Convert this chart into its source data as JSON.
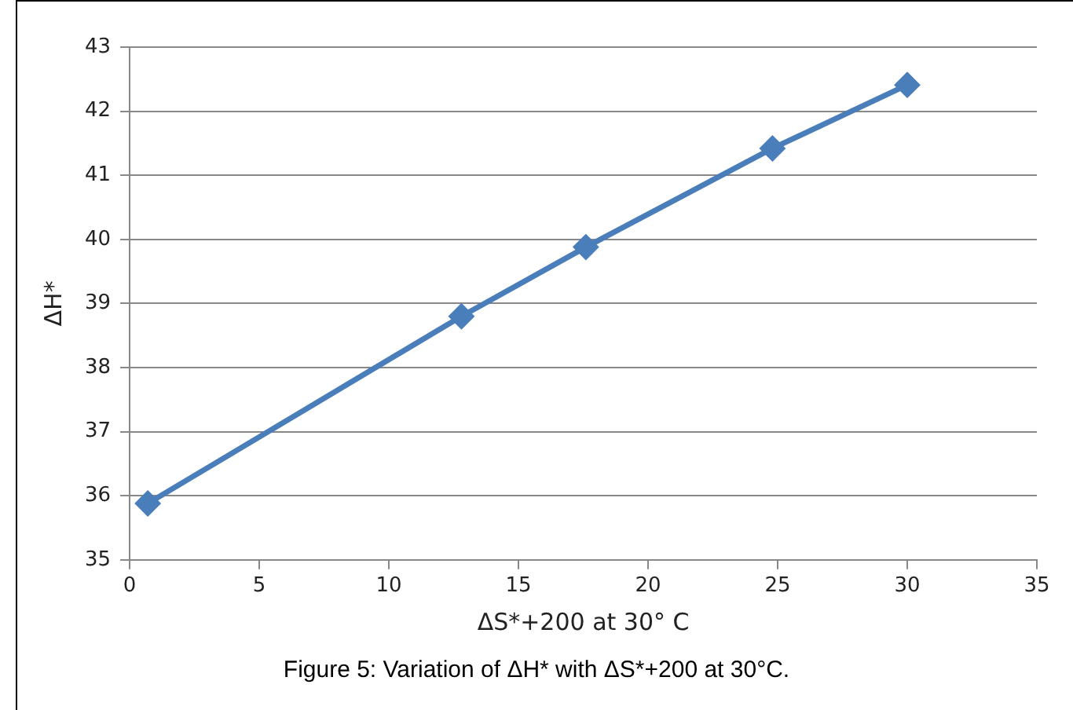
{
  "chart_data": {
    "type": "line",
    "xlabel": "ΔS*+200 at 30° C",
    "ylabel": "ΔH*",
    "x": [
      0.7,
      12.8,
      17.6,
      24.8,
      30.0
    ],
    "series": [
      {
        "color": "#4a7ebb",
        "values": [
          35.88,
          38.8,
          39.88,
          41.42,
          42.41
        ]
      }
    ],
    "xlim": [
      0,
      35
    ],
    "xticks": [
      0,
      5,
      10,
      15,
      20,
      25,
      30,
      35
    ],
    "ylim": [
      35,
      43
    ],
    "yticks": [
      35,
      36,
      37,
      38,
      39,
      40,
      41,
      42,
      43
    ],
    "grid": "y",
    "legend": false,
    "marker": "diamond",
    "line_style": "solid",
    "annotations": [
      "Figure 5: Variation of ΔH* with ΔS*+200 at 30°C."
    ]
  }
}
